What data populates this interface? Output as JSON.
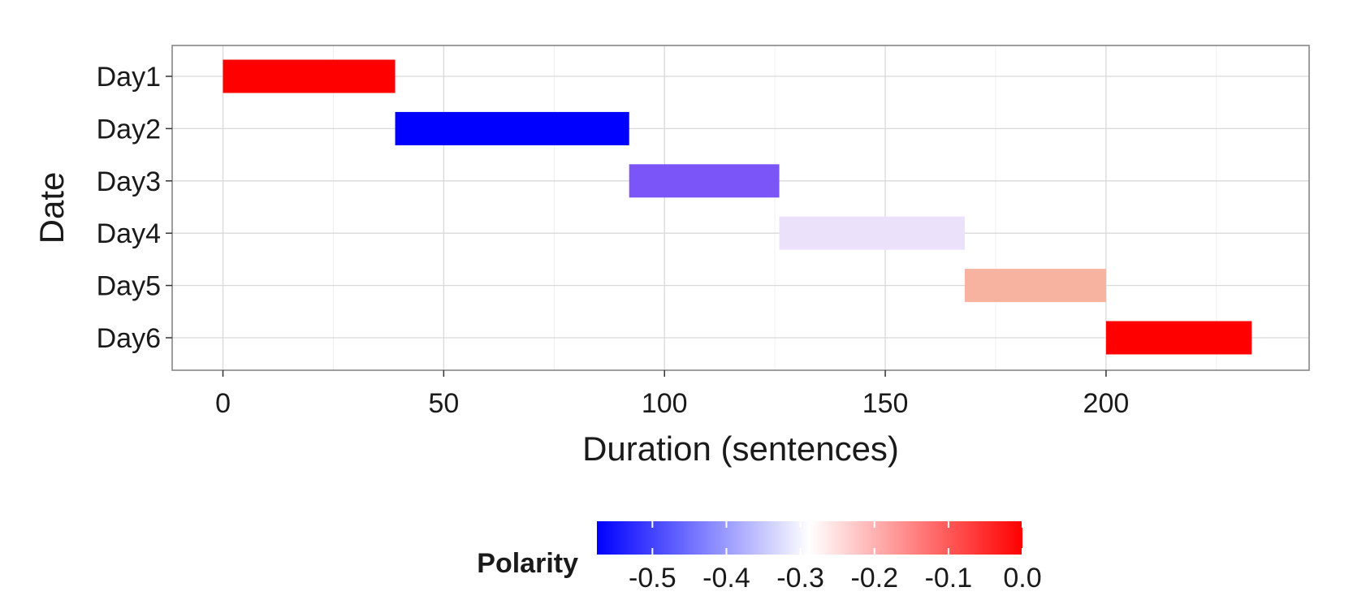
{
  "chart_data": {
    "type": "bar",
    "orientation": "horizontal",
    "subtype": "gantt",
    "xlabel": "Duration (sentences)",
    "ylabel": "Date",
    "xlim": [
      -11.5,
      246
    ],
    "x_ticks": [
      0,
      50,
      100,
      150,
      200
    ],
    "x_tick_labels": [
      "0",
      "50",
      "100",
      "150",
      "200"
    ],
    "grid": true,
    "categories": [
      "Day1",
      "Day2",
      "Day3",
      "Day4",
      "Day5",
      "Day6"
    ],
    "bars": [
      {
        "category": "Day1",
        "start": 0,
        "end": 39,
        "polarity": 0.0,
        "color": "#ff0000"
      },
      {
        "category": "Day2",
        "start": 39,
        "end": 92,
        "polarity": -0.55,
        "color": "#0000ff"
      },
      {
        "category": "Day3",
        "start": 92,
        "end": 126,
        "polarity": -0.44,
        "color": "#7b55f7"
      },
      {
        "category": "Day4",
        "start": 126,
        "end": 168,
        "polarity": -0.31,
        "color": "#ebe1fb"
      },
      {
        "category": "Day5",
        "start": 168,
        "end": 200,
        "polarity": -0.2,
        "color": "#f8b3a0"
      },
      {
        "category": "Day6",
        "start": 200,
        "end": 233,
        "polarity": 0.0,
        "color": "#ff0000"
      }
    ],
    "legend": {
      "title": "Polarity",
      "position": "bottom",
      "type": "colorbar",
      "range": [
        -0.575,
        0.0
      ],
      "ticks": [
        -0.5,
        -0.4,
        -0.3,
        -0.2,
        -0.1,
        0.0
      ],
      "tick_labels": [
        "-0.5",
        "-0.4",
        "-0.3",
        "-0.2",
        "-0.1",
        "0.0"
      ],
      "low_color": "#0000ff",
      "mid_color": "#ffffff",
      "high_color": "#ff0000"
    }
  },
  "colors": {
    "panel_border": "#7f7f7f",
    "grid_major": "#d9d9d9",
    "grid_minor": "#f0f0f0",
    "tick_mark": "#333333"
  }
}
